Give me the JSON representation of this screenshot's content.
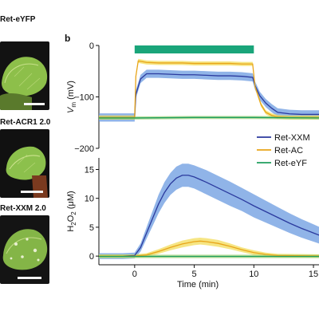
{
  "panel_a": {
    "labels": [
      "Ret-eYFP",
      "Ret-ACR1 2.0",
      "Ret-XXM 2.0"
    ]
  },
  "panel_b": {
    "label": "b"
  },
  "colors": {
    "xxm": "#2b3a9e",
    "xxm_band": "#6b9be0",
    "acr": "#e8a51a",
    "acr_band": "#f3dc5a",
    "eyfp": "#1f9e5e",
    "eyfp_band": "#9fd27a",
    "light_bar": "#1aa57a"
  },
  "chart_data": [
    {
      "type": "line",
      "ylabel_main": "V",
      "ylabel_sub": "m",
      "ylabel_unit": " (mV)",
      "yticks": [
        0,
        -100,
        -200
      ],
      "ylim": [
        -200,
        0
      ],
      "xlim": [
        -3,
        16
      ],
      "stimulus": [
        0,
        10
      ],
      "series": [
        {
          "key": "xxm",
          "x": [
            -3,
            0,
            0.1,
            0.5,
            1,
            2,
            3,
            4,
            5,
            6,
            7,
            8,
            9,
            9.9,
            10.1,
            10.5,
            11,
            11.5,
            12,
            13,
            14,
            15,
            16
          ],
          "y": [
            -140,
            -140,
            -95,
            -65,
            -55,
            -55,
            -56,
            -57,
            -57,
            -58,
            -59,
            -59,
            -60,
            -62,
            -78,
            -98,
            -112,
            -122,
            -130,
            -133,
            -134,
            -134,
            -134
          ],
          "band": 8
        },
        {
          "key": "acr",
          "x": [
            -3,
            0,
            0.1,
            0.3,
            1,
            2,
            3,
            4,
            5,
            6,
            7,
            8,
            9,
            9.9,
            10.1,
            10.6,
            11,
            11.5,
            12,
            13,
            14,
            15,
            16
          ],
          "y": [
            -140,
            -140,
            -60,
            -30,
            -33,
            -34,
            -34,
            -34,
            -35,
            -35,
            -35,
            -35,
            -36,
            -36,
            -80,
            -115,
            -130,
            -136,
            -139,
            -140,
            -140,
            -140,
            -140
          ],
          "band": 4
        },
        {
          "key": "eyfp",
          "x": [
            -3,
            0,
            5,
            10,
            16
          ],
          "y": [
            -141,
            -141,
            -140,
            -140,
            -141
          ],
          "band": 3
        }
      ]
    },
    {
      "type": "line",
      "ylabel_main": "H",
      "ylabel_sub1": "2",
      "ylabel_mid": "O",
      "ylabel_sub2": "2",
      "ylabel_unit": " (μM)",
      "yticks": [
        0,
        5,
        10,
        15
      ],
      "ylim": [
        -1.5,
        17
      ],
      "xlim": [
        -3,
        16
      ],
      "xticks": [
        0,
        5,
        10,
        15
      ],
      "xlabel": "Time (min)",
      "series": [
        {
          "key": "xxm",
          "x": [
            -3,
            -1,
            0,
            0.5,
            1,
            1.5,
            2,
            2.5,
            3,
            3.5,
            4,
            4.5,
            5,
            6,
            7,
            8,
            9,
            10,
            11,
            12,
            13,
            14,
            15,
            16
          ],
          "y": [
            0,
            0,
            0.1,
            1.5,
            4,
            6.5,
            9,
            11,
            12.5,
            13.5,
            14,
            14,
            13.7,
            12.8,
            11.8,
            10.8,
            9.8,
            8.7,
            7.7,
            6.7,
            5.7,
            4.8,
            4,
            3.2
          ],
          "band_lo": [
            0.5,
            0.5,
            0.5,
            0.7,
            1,
            1.3,
            1.6,
            1.8,
            1.9,
            2,
            2,
            2,
            2,
            2.1,
            2.1,
            2.1,
            2,
            2,
            1.9,
            1.8,
            1.7,
            1.6,
            1.5,
            1.4
          ],
          "band_hi": [
            0.5,
            0.5,
            0.5,
            0.7,
            1,
            1.3,
            1.6,
            1.8,
            1.9,
            2,
            2,
            2,
            2,
            2.1,
            2.1,
            2.1,
            2,
            2,
            1.9,
            1.8,
            1.7,
            1.6,
            1.5,
            1.4
          ]
        },
        {
          "key": "acr",
          "x": [
            -3,
            0,
            1,
            2,
            3,
            4,
            5,
            5.5,
            6,
            7,
            8,
            9,
            10,
            11,
            12,
            16
          ],
          "y": [
            0,
            0,
            0.2,
            0.8,
            1.5,
            2.1,
            2.5,
            2.6,
            2.5,
            2.2,
            1.7,
            1.1,
            0.6,
            0.3,
            0.1,
            0
          ],
          "band_lo": [
            0.3,
            0.3,
            0.3,
            0.4,
            0.5,
            0.6,
            0.6,
            0.6,
            0.6,
            0.6,
            0.5,
            0.4,
            0.4,
            0.3,
            0.3,
            0.3
          ],
          "band_hi": [
            0.3,
            0.3,
            0.3,
            0.4,
            0.5,
            0.6,
            0.6,
            0.6,
            0.6,
            0.6,
            0.5,
            0.4,
            0.4,
            0.3,
            0.3,
            0.3
          ]
        },
        {
          "key": "eyfp",
          "x": [
            -3,
            0,
            5,
            10,
            16
          ],
          "y": [
            -0.05,
            -0.05,
            -0.05,
            -0.05,
            -0.05
          ],
          "band_lo": [
            0.3,
            0.3,
            0.3,
            0.3,
            0.3
          ],
          "band_hi": [
            0.3,
            0.3,
            0.3,
            0.3,
            0.3
          ]
        }
      ],
      "legend": [
        {
          "key": "xxm",
          "label": "Ret-XXM"
        },
        {
          "key": "acr",
          "label": "Ret-AC"
        },
        {
          "key": "eyfp",
          "label": "Ret-eYF"
        }
      ]
    }
  ]
}
